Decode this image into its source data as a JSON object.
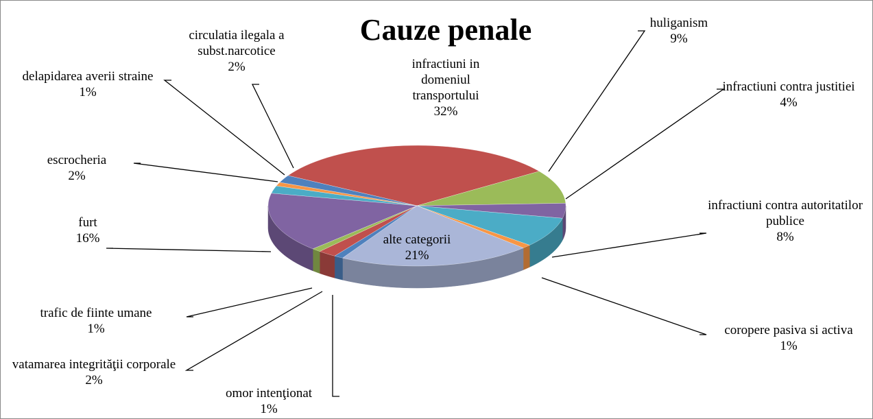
{
  "chart_data": {
    "type": "pie3d",
    "title": "Cauze penale",
    "categories": [
      "infractiuni in domeniul transportului",
      "huliganism",
      "infractiuni contra justitiei",
      "infractiuni contra autoritatilor publice",
      "coropere pasiva si activa",
      "alte categorii",
      "omor intenţionat",
      "vatamarea integrităţii corporale",
      "trafic de fiinte umane",
      "furt",
      "escrocheria",
      "delapidarea averii straine",
      "circulatia ilegala a subst.narcotice"
    ],
    "values": [
      32,
      9,
      4,
      8,
      1,
      21,
      1,
      2,
      1,
      16,
      2,
      1,
      2
    ],
    "value_labels": [
      "32%",
      "9%",
      "4%",
      "8%",
      "1%",
      "21%",
      "1%",
      "2%",
      "1%",
      "16%",
      "2%",
      "1%",
      "2%"
    ],
    "colors": [
      "#c0504d",
      "#9bbb59",
      "#8064a2",
      "#4bacc6",
      "#f79646",
      "#aab6d8",
      "#4f81bd",
      "#c0504d",
      "#9bbb59",
      "#8064a2",
      "#4bacc6",
      "#f79646",
      "#4f81bd"
    ]
  }
}
